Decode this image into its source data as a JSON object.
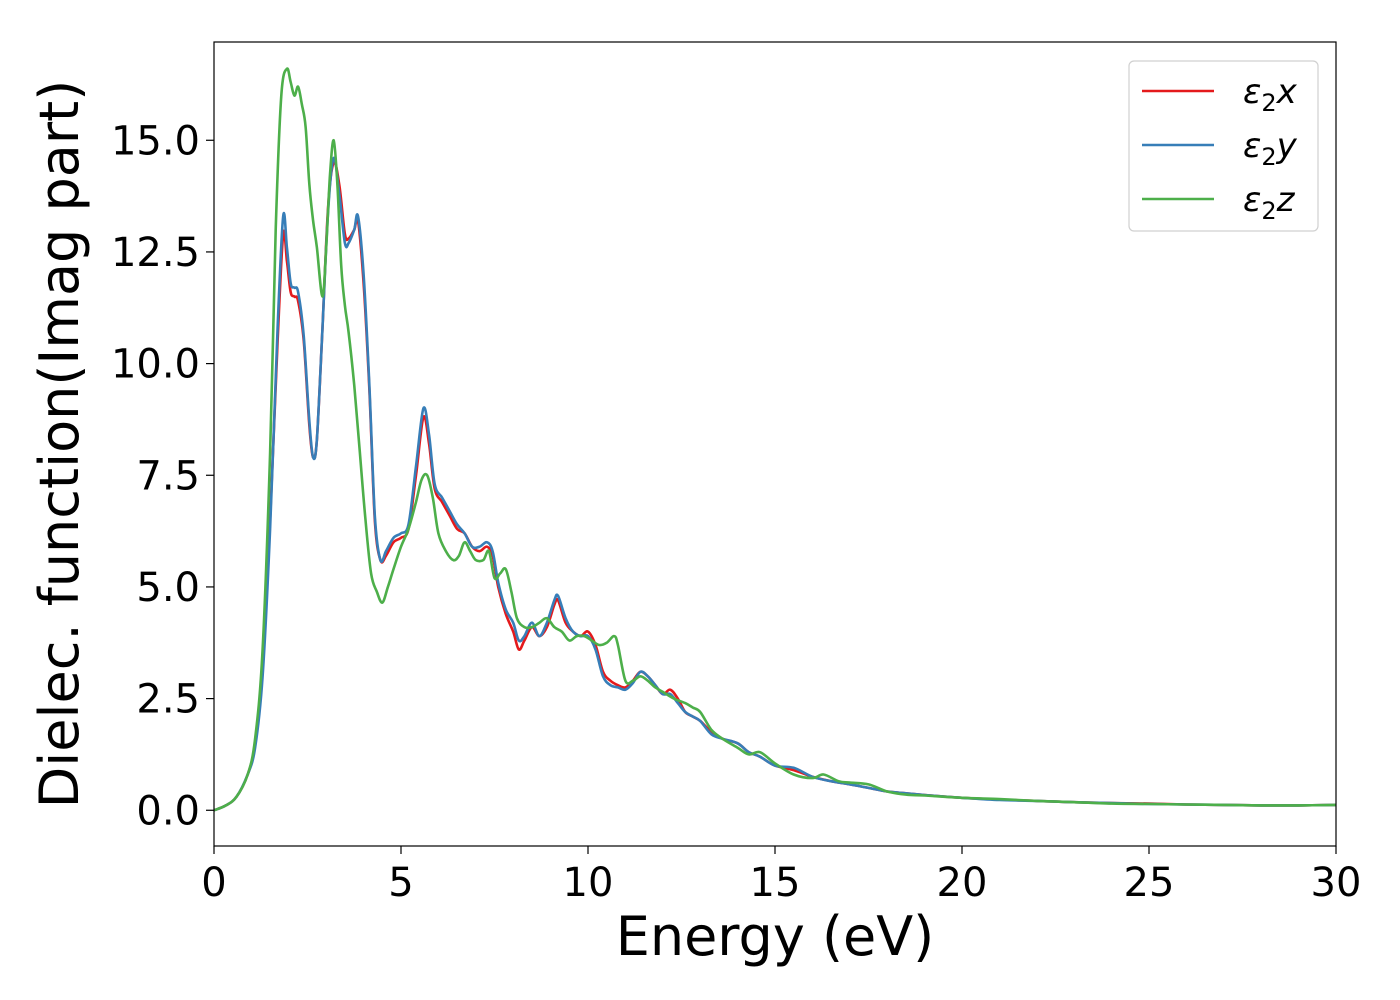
{
  "chart_data": {
    "type": "line",
    "xlabel": "Energy (eV)",
    "ylabel": "Dielec. function(Imag part)",
    "xlim": [
      0,
      30
    ],
    "ylim": [
      -0.8,
      17.2
    ],
    "x_ticks": [
      0,
      5,
      10,
      15,
      20,
      25,
      30
    ],
    "y_ticks": [
      0.0,
      2.5,
      5.0,
      7.5,
      10.0,
      12.5,
      15.0
    ],
    "x_tick_labels": [
      "0",
      "5",
      "10",
      "15",
      "20",
      "25",
      "30"
    ],
    "y_tick_labels": [
      "0.0",
      "2.5",
      "5.0",
      "7.5",
      "10.0",
      "12.5",
      "15.0"
    ],
    "grid": false,
    "legend_position": "top-right",
    "series": [
      {
        "name": "ε2x",
        "base": "ε",
        "sub": "2",
        "axis": "x",
        "color": "#e41a1c",
        "points": [
          [
            0,
            0
          ],
          [
            0.3,
            0.1
          ],
          [
            0.6,
            0.3
          ],
          [
            0.9,
            0.8
          ],
          [
            1.1,
            1.5
          ],
          [
            1.3,
            3.2
          ],
          [
            1.5,
            6.5
          ],
          [
            1.7,
            10.5
          ],
          [
            1.85,
            12.9
          ],
          [
            1.95,
            12.3
          ],
          [
            2.05,
            11.6
          ],
          [
            2.15,
            11.5
          ],
          [
            2.25,
            11.4
          ],
          [
            2.4,
            10.5
          ],
          [
            2.55,
            8.6
          ],
          [
            2.65,
            7.9
          ],
          [
            2.75,
            8.3
          ],
          [
            2.9,
            10.8
          ],
          [
            3.05,
            13.5
          ],
          [
            3.2,
            14.5
          ],
          [
            3.35,
            14.0
          ],
          [
            3.5,
            12.9
          ],
          [
            3.6,
            12.8
          ],
          [
            3.75,
            13.0
          ],
          [
            3.85,
            13.2
          ],
          [
            4.0,
            11.8
          ],
          [
            4.15,
            9.5
          ],
          [
            4.3,
            6.5
          ],
          [
            4.45,
            5.6
          ],
          [
            4.6,
            5.7
          ],
          [
            4.8,
            6.0
          ],
          [
            5.0,
            6.1
          ],
          [
            5.2,
            6.3
          ],
          [
            5.4,
            7.5
          ],
          [
            5.6,
            8.8
          ],
          [
            5.75,
            8.2
          ],
          [
            5.9,
            7.2
          ],
          [
            6.1,
            6.9
          ],
          [
            6.3,
            6.6
          ],
          [
            6.5,
            6.3
          ],
          [
            6.7,
            6.2
          ],
          [
            6.9,
            5.9
          ],
          [
            7.1,
            5.8
          ],
          [
            7.3,
            5.9
          ],
          [
            7.45,
            5.7
          ],
          [
            7.6,
            5.0
          ],
          [
            7.8,
            4.4
          ],
          [
            8.0,
            4.0
          ],
          [
            8.15,
            3.6
          ],
          [
            8.3,
            3.8
          ],
          [
            8.5,
            4.1
          ],
          [
            8.7,
            3.9
          ],
          [
            8.9,
            4.1
          ],
          [
            9.1,
            4.6
          ],
          [
            9.2,
            4.7
          ],
          [
            9.4,
            4.2
          ],
          [
            9.6,
            4.0
          ],
          [
            9.8,
            3.9
          ],
          [
            10.0,
            4.0
          ],
          [
            10.2,
            3.7
          ],
          [
            10.4,
            3.1
          ],
          [
            10.6,
            2.9
          ],
          [
            10.8,
            2.8
          ],
          [
            11.0,
            2.75
          ],
          [
            11.2,
            2.9
          ],
          [
            11.4,
            3.1
          ],
          [
            11.6,
            3.0
          ],
          [
            11.8,
            2.8
          ],
          [
            12.0,
            2.6
          ],
          [
            12.2,
            2.7
          ],
          [
            12.4,
            2.5
          ],
          [
            12.6,
            2.2
          ],
          [
            12.8,
            2.1
          ],
          [
            13.0,
            2.0
          ],
          [
            13.3,
            1.75
          ],
          [
            13.6,
            1.6
          ],
          [
            14.0,
            1.5
          ],
          [
            14.3,
            1.3
          ],
          [
            14.6,
            1.2
          ],
          [
            15.0,
            1.0
          ],
          [
            15.5,
            0.9
          ],
          [
            16.0,
            0.75
          ],
          [
            16.5,
            0.65
          ],
          [
            17.0,
            0.58
          ],
          [
            17.5,
            0.5
          ],
          [
            18.0,
            0.42
          ],
          [
            18.5,
            0.38
          ],
          [
            19.0,
            0.34
          ],
          [
            20.0,
            0.28
          ],
          [
            21.0,
            0.24
          ],
          [
            22.0,
            0.21
          ],
          [
            23.0,
            0.18
          ],
          [
            24.0,
            0.16
          ],
          [
            25.0,
            0.15
          ],
          [
            26.0,
            0.13
          ],
          [
            27.0,
            0.12
          ],
          [
            28.0,
            0.11
          ],
          [
            29.0,
            0.11
          ],
          [
            30.0,
            0.12
          ]
        ]
      },
      {
        "name": "ε2y",
        "base": "ε",
        "sub": "2",
        "axis": "y",
        "color": "#377eb8",
        "points": [
          [
            0,
            0
          ],
          [
            0.3,
            0.1
          ],
          [
            0.6,
            0.3
          ],
          [
            0.9,
            0.8
          ],
          [
            1.1,
            1.4
          ],
          [
            1.3,
            3.0
          ],
          [
            1.5,
            6.3
          ],
          [
            1.7,
            10.8
          ],
          [
            1.85,
            13.3
          ],
          [
            1.95,
            12.6
          ],
          [
            2.05,
            11.8
          ],
          [
            2.15,
            11.7
          ],
          [
            2.25,
            11.6
          ],
          [
            2.4,
            10.6
          ],
          [
            2.55,
            8.7
          ],
          [
            2.65,
            7.9
          ],
          [
            2.75,
            8.3
          ],
          [
            2.9,
            10.8
          ],
          [
            3.05,
            13.4
          ],
          [
            3.2,
            14.6
          ],
          [
            3.35,
            13.8
          ],
          [
            3.5,
            12.7
          ],
          [
            3.6,
            12.7
          ],
          [
            3.75,
            13.0
          ],
          [
            3.85,
            13.3
          ],
          [
            4.0,
            12.0
          ],
          [
            4.15,
            9.6
          ],
          [
            4.3,
            6.6
          ],
          [
            4.45,
            5.6
          ],
          [
            4.6,
            5.8
          ],
          [
            4.8,
            6.1
          ],
          [
            5.0,
            6.2
          ],
          [
            5.2,
            6.4
          ],
          [
            5.4,
            7.7
          ],
          [
            5.6,
            9.0
          ],
          [
            5.75,
            8.4
          ],
          [
            5.9,
            7.3
          ],
          [
            6.1,
            7.0
          ],
          [
            6.3,
            6.7
          ],
          [
            6.5,
            6.4
          ],
          [
            6.7,
            6.2
          ],
          [
            6.9,
            5.9
          ],
          [
            7.1,
            5.9
          ],
          [
            7.3,
            6.0
          ],
          [
            7.45,
            5.8
          ],
          [
            7.6,
            5.1
          ],
          [
            7.8,
            4.5
          ],
          [
            8.0,
            4.2
          ],
          [
            8.15,
            3.8
          ],
          [
            8.3,
            3.9
          ],
          [
            8.5,
            4.2
          ],
          [
            8.7,
            3.9
          ],
          [
            8.9,
            4.2
          ],
          [
            9.1,
            4.7
          ],
          [
            9.2,
            4.8
          ],
          [
            9.4,
            4.3
          ],
          [
            9.6,
            4.0
          ],
          [
            9.8,
            3.9
          ],
          [
            10.0,
            3.9
          ],
          [
            10.2,
            3.6
          ],
          [
            10.4,
            3.0
          ],
          [
            10.6,
            2.8
          ],
          [
            10.8,
            2.75
          ],
          [
            11.0,
            2.7
          ],
          [
            11.2,
            2.85
          ],
          [
            11.4,
            3.1
          ],
          [
            11.6,
            3.0
          ],
          [
            11.8,
            2.8
          ],
          [
            12.0,
            2.6
          ],
          [
            12.2,
            2.6
          ],
          [
            12.4,
            2.4
          ],
          [
            12.6,
            2.2
          ],
          [
            12.8,
            2.1
          ],
          [
            13.0,
            2.0
          ],
          [
            13.3,
            1.7
          ],
          [
            13.6,
            1.6
          ],
          [
            14.0,
            1.5
          ],
          [
            14.3,
            1.3
          ],
          [
            14.6,
            1.2
          ],
          [
            15.0,
            1.0
          ],
          [
            15.5,
            0.95
          ],
          [
            16.0,
            0.75
          ],
          [
            16.5,
            0.65
          ],
          [
            17.0,
            0.58
          ],
          [
            17.5,
            0.5
          ],
          [
            18.0,
            0.42
          ],
          [
            18.5,
            0.38
          ],
          [
            19.0,
            0.34
          ],
          [
            20.0,
            0.28
          ],
          [
            21.0,
            0.23
          ],
          [
            22.0,
            0.21
          ],
          [
            23.0,
            0.18
          ],
          [
            24.0,
            0.16
          ],
          [
            25.0,
            0.14
          ],
          [
            26.0,
            0.13
          ],
          [
            27.0,
            0.12
          ],
          [
            28.0,
            0.11
          ],
          [
            29.0,
            0.11
          ],
          [
            30.0,
            0.12
          ]
        ]
      },
      {
        "name": "ε2z",
        "base": "ε",
        "sub": "2",
        "axis": "z",
        "color": "#4daf4a",
        "points": [
          [
            0,
            0
          ],
          [
            0.3,
            0.1
          ],
          [
            0.6,
            0.3
          ],
          [
            0.9,
            0.8
          ],
          [
            1.1,
            1.6
          ],
          [
            1.3,
            3.6
          ],
          [
            1.5,
            8.0
          ],
          [
            1.65,
            13.0
          ],
          [
            1.8,
            16.0
          ],
          [
            1.95,
            16.6
          ],
          [
            2.05,
            16.3
          ],
          [
            2.15,
            16.0
          ],
          [
            2.25,
            16.2
          ],
          [
            2.35,
            15.8
          ],
          [
            2.45,
            15.3
          ],
          [
            2.55,
            14.0
          ],
          [
            2.65,
            13.2
          ],
          [
            2.75,
            12.6
          ],
          [
            2.9,
            11.5
          ],
          [
            3.0,
            12.6
          ],
          [
            3.1,
            14.2
          ],
          [
            3.2,
            15.0
          ],
          [
            3.3,
            14.0
          ],
          [
            3.4,
            12.2
          ],
          [
            3.5,
            11.3
          ],
          [
            3.6,
            10.7
          ],
          [
            3.75,
            9.5
          ],
          [
            3.9,
            8.0
          ],
          [
            4.05,
            6.5
          ],
          [
            4.2,
            5.3
          ],
          [
            4.35,
            4.9
          ],
          [
            4.5,
            4.65
          ],
          [
            4.65,
            5.0
          ],
          [
            4.8,
            5.4
          ],
          [
            5.0,
            5.9
          ],
          [
            5.2,
            6.3
          ],
          [
            5.4,
            6.9
          ],
          [
            5.55,
            7.4
          ],
          [
            5.7,
            7.5
          ],
          [
            5.85,
            7.0
          ],
          [
            6.0,
            6.2
          ],
          [
            6.2,
            5.8
          ],
          [
            6.4,
            5.6
          ],
          [
            6.55,
            5.7
          ],
          [
            6.7,
            6.0
          ],
          [
            6.85,
            5.8
          ],
          [
            7.0,
            5.6
          ],
          [
            7.2,
            5.6
          ],
          [
            7.35,
            5.8
          ],
          [
            7.5,
            5.2
          ],
          [
            7.65,
            5.3
          ],
          [
            7.8,
            5.4
          ],
          [
            7.95,
            4.9
          ],
          [
            8.1,
            4.3
          ],
          [
            8.3,
            4.1
          ],
          [
            8.5,
            4.1
          ],
          [
            8.7,
            4.2
          ],
          [
            8.9,
            4.3
          ],
          [
            9.1,
            4.1
          ],
          [
            9.3,
            4.0
          ],
          [
            9.5,
            3.8
          ],
          [
            9.7,
            3.9
          ],
          [
            9.9,
            3.9
          ],
          [
            10.1,
            3.8
          ],
          [
            10.3,
            3.7
          ],
          [
            10.5,
            3.75
          ],
          [
            10.7,
            3.9
          ],
          [
            10.8,
            3.7
          ],
          [
            11.0,
            2.9
          ],
          [
            11.2,
            2.9
          ],
          [
            11.4,
            3.0
          ],
          [
            11.6,
            2.9
          ],
          [
            11.8,
            2.75
          ],
          [
            12.0,
            2.65
          ],
          [
            12.3,
            2.5
          ],
          [
            12.6,
            2.4
          ],
          [
            12.8,
            2.3
          ],
          [
            13.0,
            2.2
          ],
          [
            13.3,
            1.8
          ],
          [
            13.6,
            1.6
          ],
          [
            14.0,
            1.4
          ],
          [
            14.3,
            1.25
          ],
          [
            14.6,
            1.3
          ],
          [
            15.0,
            1.05
          ],
          [
            15.5,
            0.8
          ],
          [
            16.0,
            0.72
          ],
          [
            16.3,
            0.8
          ],
          [
            16.7,
            0.65
          ],
          [
            17.0,
            0.62
          ],
          [
            17.5,
            0.58
          ],
          [
            18.0,
            0.42
          ],
          [
            18.5,
            0.35
          ],
          [
            19.0,
            0.33
          ],
          [
            20.0,
            0.28
          ],
          [
            21.0,
            0.25
          ],
          [
            22.0,
            0.21
          ],
          [
            23.0,
            0.18
          ],
          [
            24.0,
            0.15
          ],
          [
            25.0,
            0.14
          ],
          [
            26.0,
            0.13
          ],
          [
            27.0,
            0.12
          ],
          [
            28.0,
            0.11
          ],
          [
            29.0,
            0.11
          ],
          [
            30.0,
            0.12
          ]
        ]
      }
    ]
  }
}
